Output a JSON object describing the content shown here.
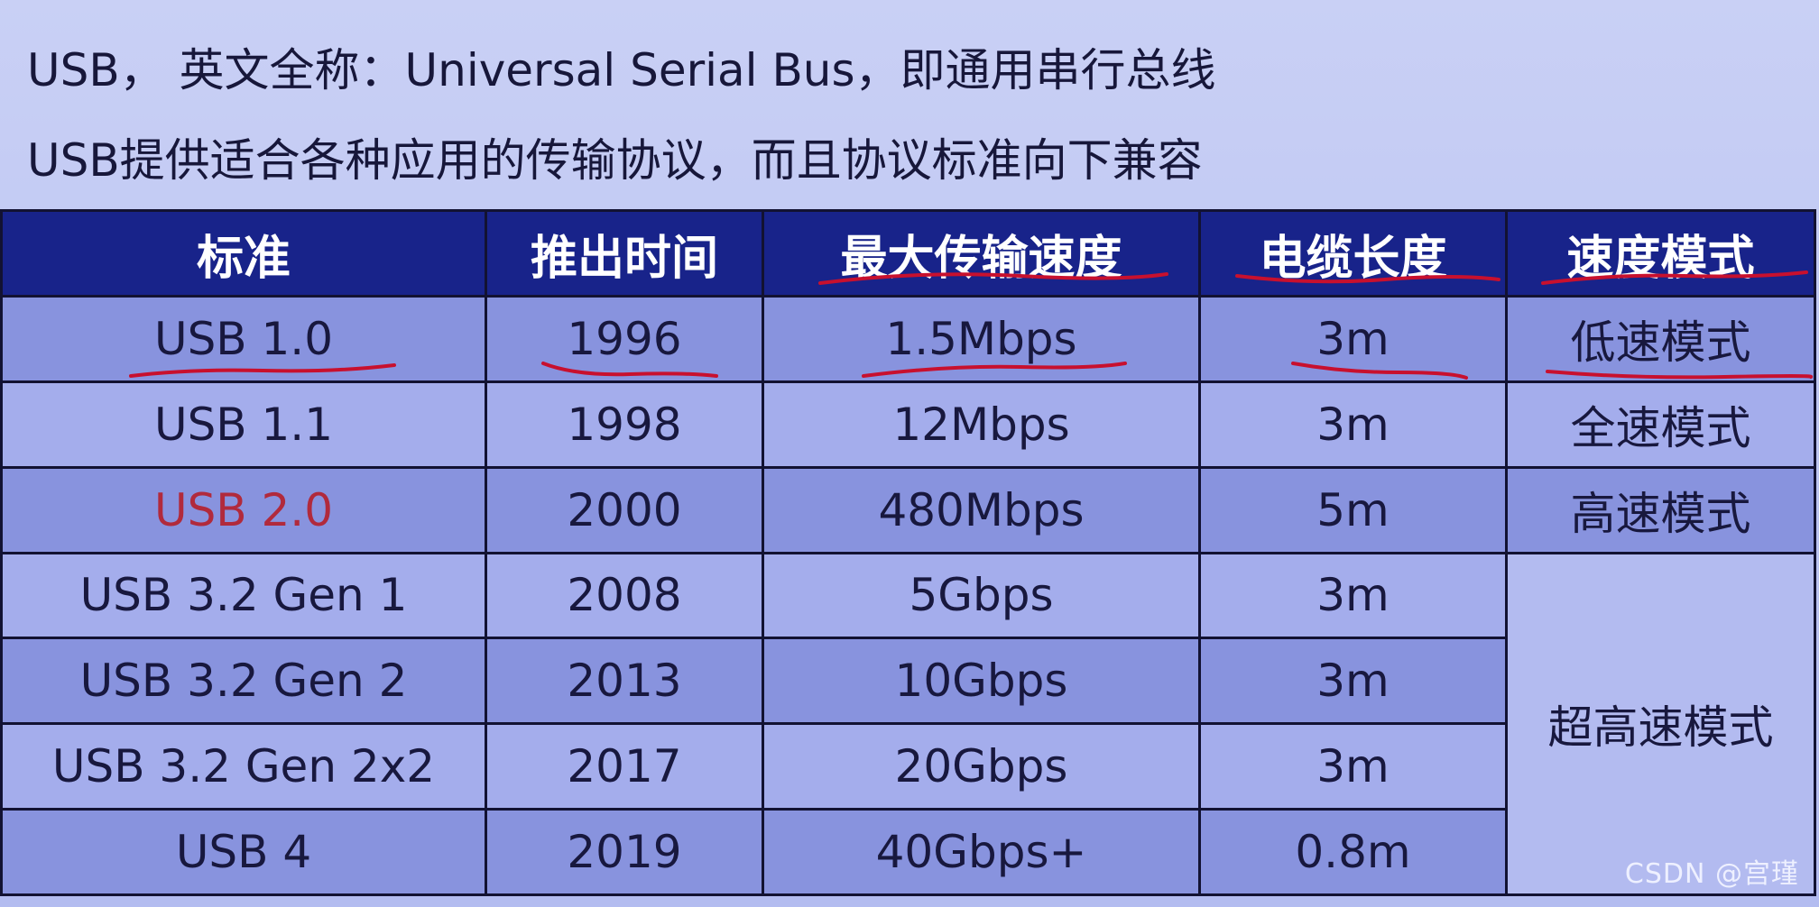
{
  "intro": {
    "line1": "USB， 英文全称：Universal Serial Bus，即通用串行总线",
    "line2": "USB提供适合各种应用的传输协议，而且协议标准向下兼容"
  },
  "table": {
    "headers": [
      "标准",
      "推出时间",
      "最大传输速度",
      "电缆长度",
      "速度模式"
    ],
    "rows": [
      {
        "standard": "USB 1.0",
        "year": "1996",
        "speed": "1.5Mbps",
        "cable": "3m",
        "mode": "低速模式"
      },
      {
        "standard": "USB 1.1",
        "year": "1998",
        "speed": "12Mbps",
        "cable": "3m",
        "mode": "全速模式"
      },
      {
        "standard": "USB 2.0",
        "year": "2000",
        "speed": "480Mbps",
        "cable": "5m",
        "mode": "高速模式"
      },
      {
        "standard": "USB 3.2 Gen 1",
        "year": "2008",
        "speed": "5Gbps",
        "cable": "3m"
      },
      {
        "standard": "USB 3.2 Gen 2",
        "year": "2013",
        "speed": "10Gbps",
        "cable": "3m"
      },
      {
        "standard": "USB 3.2 Gen 2x2",
        "year": "2017",
        "speed": "20Gbps",
        "cable": "3m"
      },
      {
        "standard": "USB 4",
        "year": "2019",
        "speed": "40Gbps+",
        "cable": "0.8m"
      }
    ],
    "merged_mode": "超高速模式"
  },
  "watermark": "CSDN @宫瑾",
  "colors": {
    "header_bg": "#18238a",
    "row_dark": "#8893de",
    "row_light": "#a4adec",
    "annotation_red": "#c8102e",
    "highlight_text": "#b12a3c"
  }
}
